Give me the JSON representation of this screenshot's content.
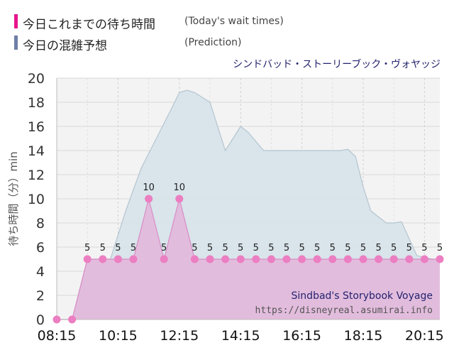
{
  "legend": {
    "actual_label": "今日これまでの待ち時間",
    "actual_note": "(Today's wait times)",
    "prediction_label": "今日の混雑予想",
    "prediction_note": "(Prediction)"
  },
  "attraction_name": "シンドバッド・ストーリーブック・ヴォヤッジ",
  "watermark": {
    "title": "Sindbad's Storybook Voyage",
    "url": "https://disneyreal.asumirai.info"
  },
  "colors": {
    "actual": "#e8148c",
    "actual_fill": "#e3b5da",
    "actual_dot": "#ec7ec2",
    "prediction": "#6f7fa6",
    "prediction_fill": "#d7e3ea",
    "prediction_line": "#b5c5d0",
    "plot_bg": "#f3f3f3"
  },
  "chart_data": {
    "type": "area",
    "ylabel": "待ち時間（分）min",
    "ylim": [
      0,
      20
    ],
    "yticks": [
      0,
      2,
      4,
      6,
      8,
      10,
      12,
      14,
      16,
      18,
      20
    ],
    "xlim": [
      "08:15",
      "20:45"
    ],
    "xticks": [
      "08:15",
      "10:15",
      "12:15",
      "14:15",
      "16:15",
      "18:15",
      "20:15"
    ],
    "series": [
      {
        "name": "今日の混雑予想",
        "x": [
          "08:15",
          "08:45",
          "09:15",
          "10:00",
          "10:30",
          "11:00",
          "11:30",
          "12:00",
          "12:15",
          "12:30",
          "12:45",
          "13:15",
          "13:45",
          "14:15",
          "14:30",
          "15:00",
          "16:00",
          "17:00",
          "17:30",
          "17:45",
          "18:00",
          "18:15",
          "18:30",
          "18:45",
          "19:00",
          "19:15",
          "19:30",
          "20:00",
          "20:30",
          "20:45"
        ],
        "values": [
          0,
          0,
          5,
          5,
          9,
          12.5,
          15,
          17.5,
          18.8,
          19,
          18.8,
          18,
          14,
          16,
          15.5,
          14,
          14,
          14,
          14,
          14.1,
          13.5,
          11,
          9,
          8.5,
          8,
          8,
          8.1,
          5.3,
          5,
          5
        ]
      },
      {
        "name": "今日これまでの待ち時間",
        "x": [
          "08:15",
          "08:45",
          "09:15",
          "09:45",
          "10:15",
          "10:45",
          "11:15",
          "11:45",
          "12:15",
          "12:45",
          "13:15",
          "13:45",
          "14:15",
          "14:45",
          "15:15",
          "15:45",
          "16:15",
          "16:45",
          "17:15",
          "17:45",
          "18:15",
          "18:45",
          "19:15",
          "19:45",
          "20:15",
          "20:45"
        ],
        "values": [
          0,
          0,
          5,
          5,
          5,
          5,
          10,
          5,
          10,
          5,
          5,
          5,
          5,
          5,
          5,
          5,
          5,
          5,
          5,
          5,
          5,
          5,
          5,
          5,
          5,
          5
        ]
      }
    ],
    "data_labels": [
      "",
      "",
      "5",
      "5",
      "5",
      "5",
      "10",
      "5",
      "10",
      "5",
      "5",
      "5",
      "5",
      "5",
      "5",
      "5",
      "5",
      "5",
      "5",
      "5",
      "5",
      "5",
      "5",
      "5",
      "5",
      "5"
    ]
  }
}
